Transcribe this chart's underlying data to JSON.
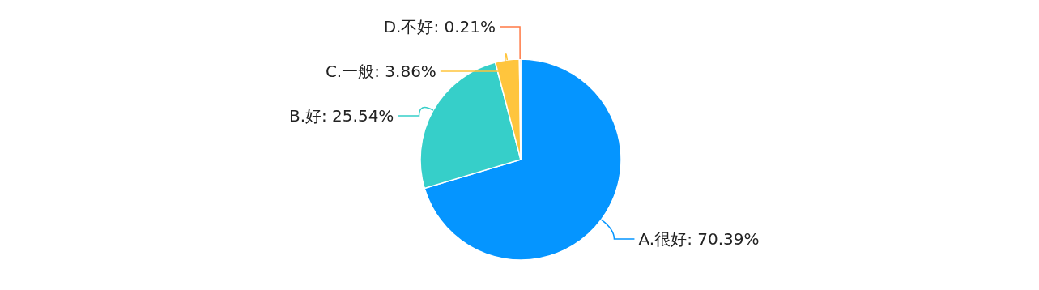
{
  "chart_data": {
    "type": "pie",
    "categories": [
      "A.很好",
      "B.好",
      "C.一般",
      "D.不好"
    ],
    "values": [
      70.39,
      25.54,
      3.86,
      0.21
    ],
    "value_labels": [
      "70.39%",
      "25.54%",
      "3.86%",
      "0.21%"
    ],
    "colors": [
      "#0595ff",
      "#36cfc9",
      "#ffc53d",
      "#ff7a45"
    ]
  }
}
